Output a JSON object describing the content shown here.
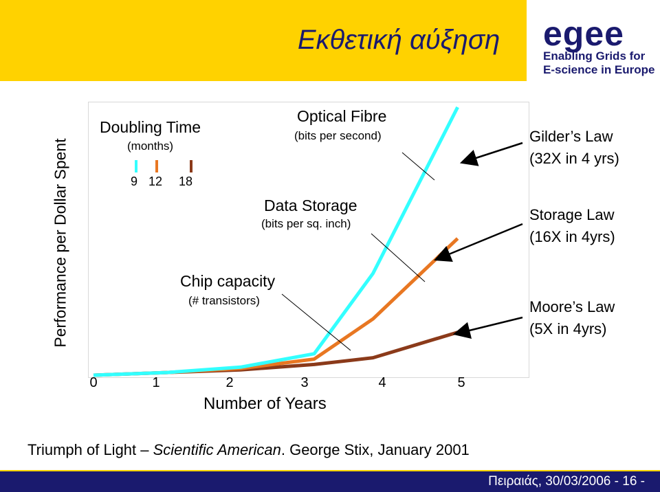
{
  "header": {
    "title": "Εκθετική αύξηση"
  },
  "logo": {
    "word": "egee",
    "line1": "Enabling Grids for",
    "line2": "E-science in Europe"
  },
  "colors": {
    "fibre": "#33ffff",
    "storage": "#e87722",
    "chip": "#8b3a1a",
    "header_bg": "#ffd200",
    "footer_bg": "#1a1a6e"
  },
  "chart_data": {
    "type": "line",
    "xlabel": "Number of Years",
    "ylabel": "Performance per Dollar Spent",
    "xticks": [
      "0",
      "1",
      "2",
      "3",
      "4",
      "5"
    ],
    "xlim": [
      0,
      5
    ],
    "ylim": [
      0,
      100
    ],
    "series": [
      {
        "name": "Optical Fibre",
        "sub": "(bits per second)",
        "doubling_months": "9",
        "x": [
          0,
          1,
          2,
          3,
          3.8,
          4.95
        ],
        "values": [
          0,
          1,
          3,
          8,
          38,
          100
        ]
      },
      {
        "name": "Data Storage",
        "sub": "(bits per sq. inch)",
        "doubling_months": "12",
        "x": [
          0,
          1,
          2,
          3,
          3.8,
          4.95
        ],
        "values": [
          0,
          1,
          2.5,
          6,
          21,
          51
        ]
      },
      {
        "name": "Chip capacity",
        "sub": "(# transistors)",
        "doubling_months": "18",
        "x": [
          0,
          1,
          2,
          3,
          3.8,
          4.95
        ],
        "values": [
          0,
          1,
          2,
          4,
          6.5,
          16
        ]
      }
    ]
  },
  "legend": {
    "title": "Doubling Time",
    "subtitle": "(months)"
  },
  "laws": [
    {
      "name": "Gilder’s Law",
      "detail": "(32X in 4 yrs)"
    },
    {
      "name": "Storage Law",
      "detail": "(16X in 4yrs)"
    },
    {
      "name": "Moore’s Law",
      "detail": "(5X in 4yrs)"
    }
  ],
  "source": {
    "prefix": "Triumph of Light – ",
    "journal": "Scientific American",
    "suffix": ". George Stix, January 2001"
  },
  "footer": {
    "text": "Πειραιάς, 30/03/2006   - 16 -"
  }
}
